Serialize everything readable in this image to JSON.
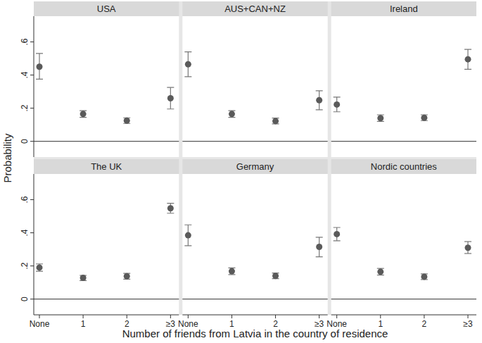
{
  "chart_data": {
    "type": "scatter",
    "xlabel": "Number of friends from Latvia in the country of residence",
    "ylabel": "Probability",
    "categories": [
      "None",
      "1",
      "2",
      "≥3"
    ],
    "ylim": [
      -0.095,
      0.755
    ],
    "yticks": [
      0,
      {
        "value": 0.2,
        "label": ".2"
      },
      {
        "value": 0.4,
        "label": ".4"
      },
      {
        "value": 0.6,
        "label": ".6"
      }
    ],
    "grid": false,
    "marker": "circle",
    "color": "#5a5a5a",
    "panels": [
      {
        "title": "USA",
        "values": [
          0.45,
          0.165,
          0.125,
          0.26
        ],
        "ci_low": [
          0.375,
          0.145,
          0.108,
          0.195
        ],
        "ci_high": [
          0.53,
          0.185,
          0.142,
          0.325
        ]
      },
      {
        "title": "AUS+CAN+NZ",
        "values": [
          0.465,
          0.165,
          0.122,
          0.248
        ],
        "ci_low": [
          0.39,
          0.145,
          0.105,
          0.19
        ],
        "ci_high": [
          0.54,
          0.185,
          0.14,
          0.305
        ]
      },
      {
        "title": "Ireland",
        "values": [
          0.222,
          0.14,
          0.142,
          0.495
        ],
        "ci_low": [
          0.178,
          0.12,
          0.125,
          0.435
        ],
        "ci_high": [
          0.267,
          0.16,
          0.16,
          0.555
        ]
      },
      {
        "title": "The UK",
        "values": [
          0.19,
          0.128,
          0.138,
          0.548
        ],
        "ci_low": [
          0.168,
          0.112,
          0.12,
          0.518
        ],
        "ci_high": [
          0.212,
          0.143,
          0.155,
          0.578
        ]
      },
      {
        "title": "Germany",
        "values": [
          0.385,
          0.168,
          0.14,
          0.315
        ],
        "ci_low": [
          0.322,
          0.148,
          0.123,
          0.255
        ],
        "ci_high": [
          0.448,
          0.188,
          0.157,
          0.373
        ]
      },
      {
        "title": "Nordic countries",
        "values": [
          0.392,
          0.165,
          0.135,
          0.31
        ],
        "ci_low": [
          0.352,
          0.145,
          0.118,
          0.275
        ],
        "ci_high": [
          0.432,
          0.185,
          0.152,
          0.347
        ]
      }
    ]
  }
}
